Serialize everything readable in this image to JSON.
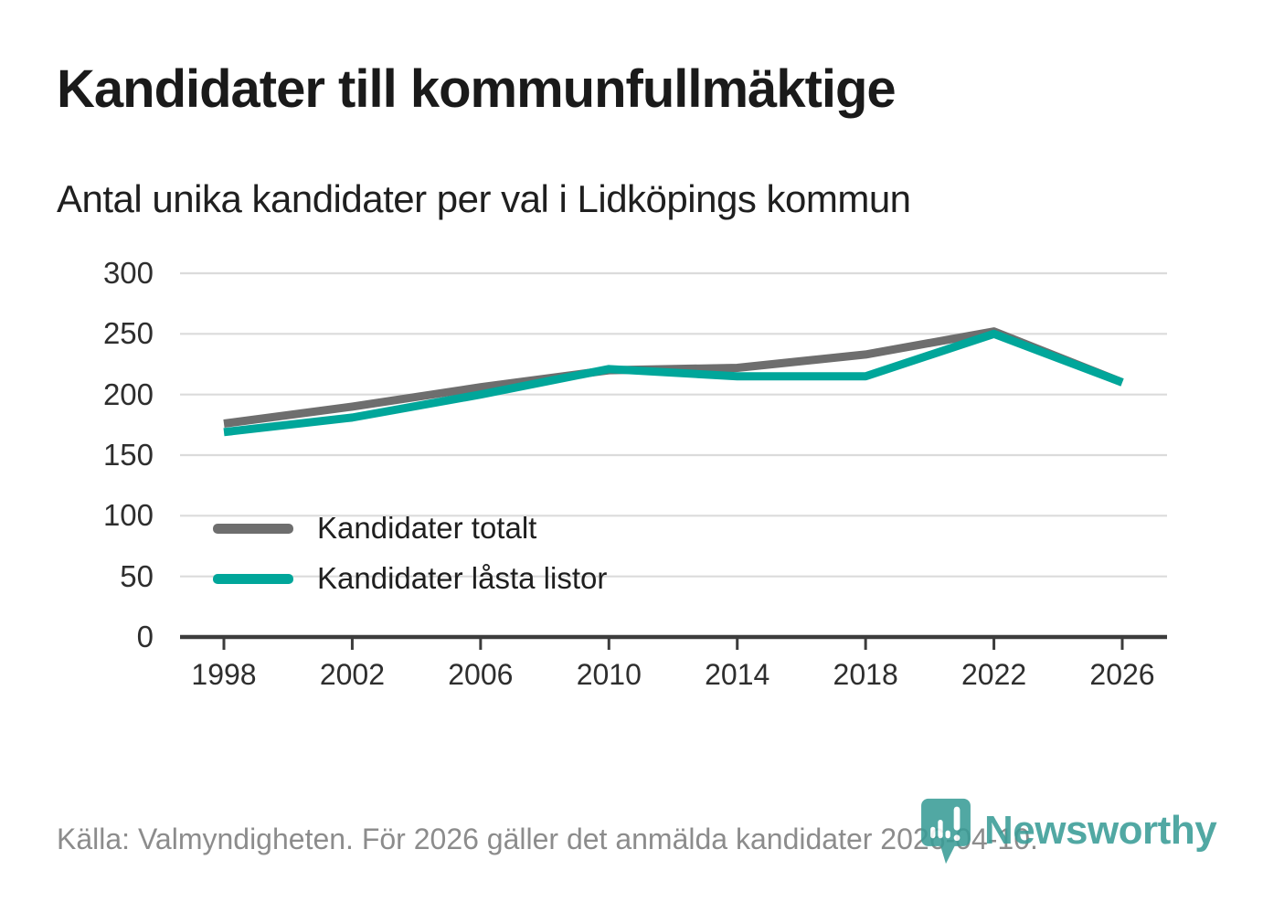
{
  "title": "Kandidater till kommunfullmäktige",
  "subtitle": "Antal unika kandidater per val i Lidköpings kommun",
  "footer": {
    "source_text": "Källa: Valmyndigheten. För 2026 gäller det anmälda kandidater 2026-04-10."
  },
  "logo": {
    "wordmark": "Newsworthy",
    "icon": "newsworthy-pin-barchart-icon"
  },
  "colors": {
    "total_line": "#6e6e6e",
    "locked_line": "#00a69a",
    "grid": "#dbdbdb",
    "axis": "#3c3c3c",
    "title_text": "#1a1a1a",
    "tick_text": "#2e2e2e",
    "footer_text": "#8c8c8c",
    "logo_teal": "#3a9d97",
    "background": "#ffffff"
  },
  "chart_data": {
    "type": "line",
    "title": "Kandidater till kommunfullmäktige",
    "subtitle": "Antal unika kandidater per val i Lidköpings kommun",
    "xlabel": "",
    "ylabel": "",
    "x": [
      1998,
      2002,
      2006,
      2010,
      2014,
      2018,
      2022,
      2026
    ],
    "series": [
      {
        "name": "Kandidater totalt",
        "color_key": "total_line",
        "values": [
          176,
          190,
          206,
          220,
          222,
          233,
          252,
          210
        ]
      },
      {
        "name": "Kandidater låsta listor",
        "color_key": "locked_line",
        "values": [
          169,
          181,
          200,
          221,
          215,
          215,
          250,
          210
        ]
      }
    ],
    "ylim": [
      0,
      300
    ],
    "yticks": [
      0,
      50,
      100,
      150,
      200,
      250,
      300
    ],
    "grid": "horizontal",
    "legend_position": "inside-left-lower"
  }
}
